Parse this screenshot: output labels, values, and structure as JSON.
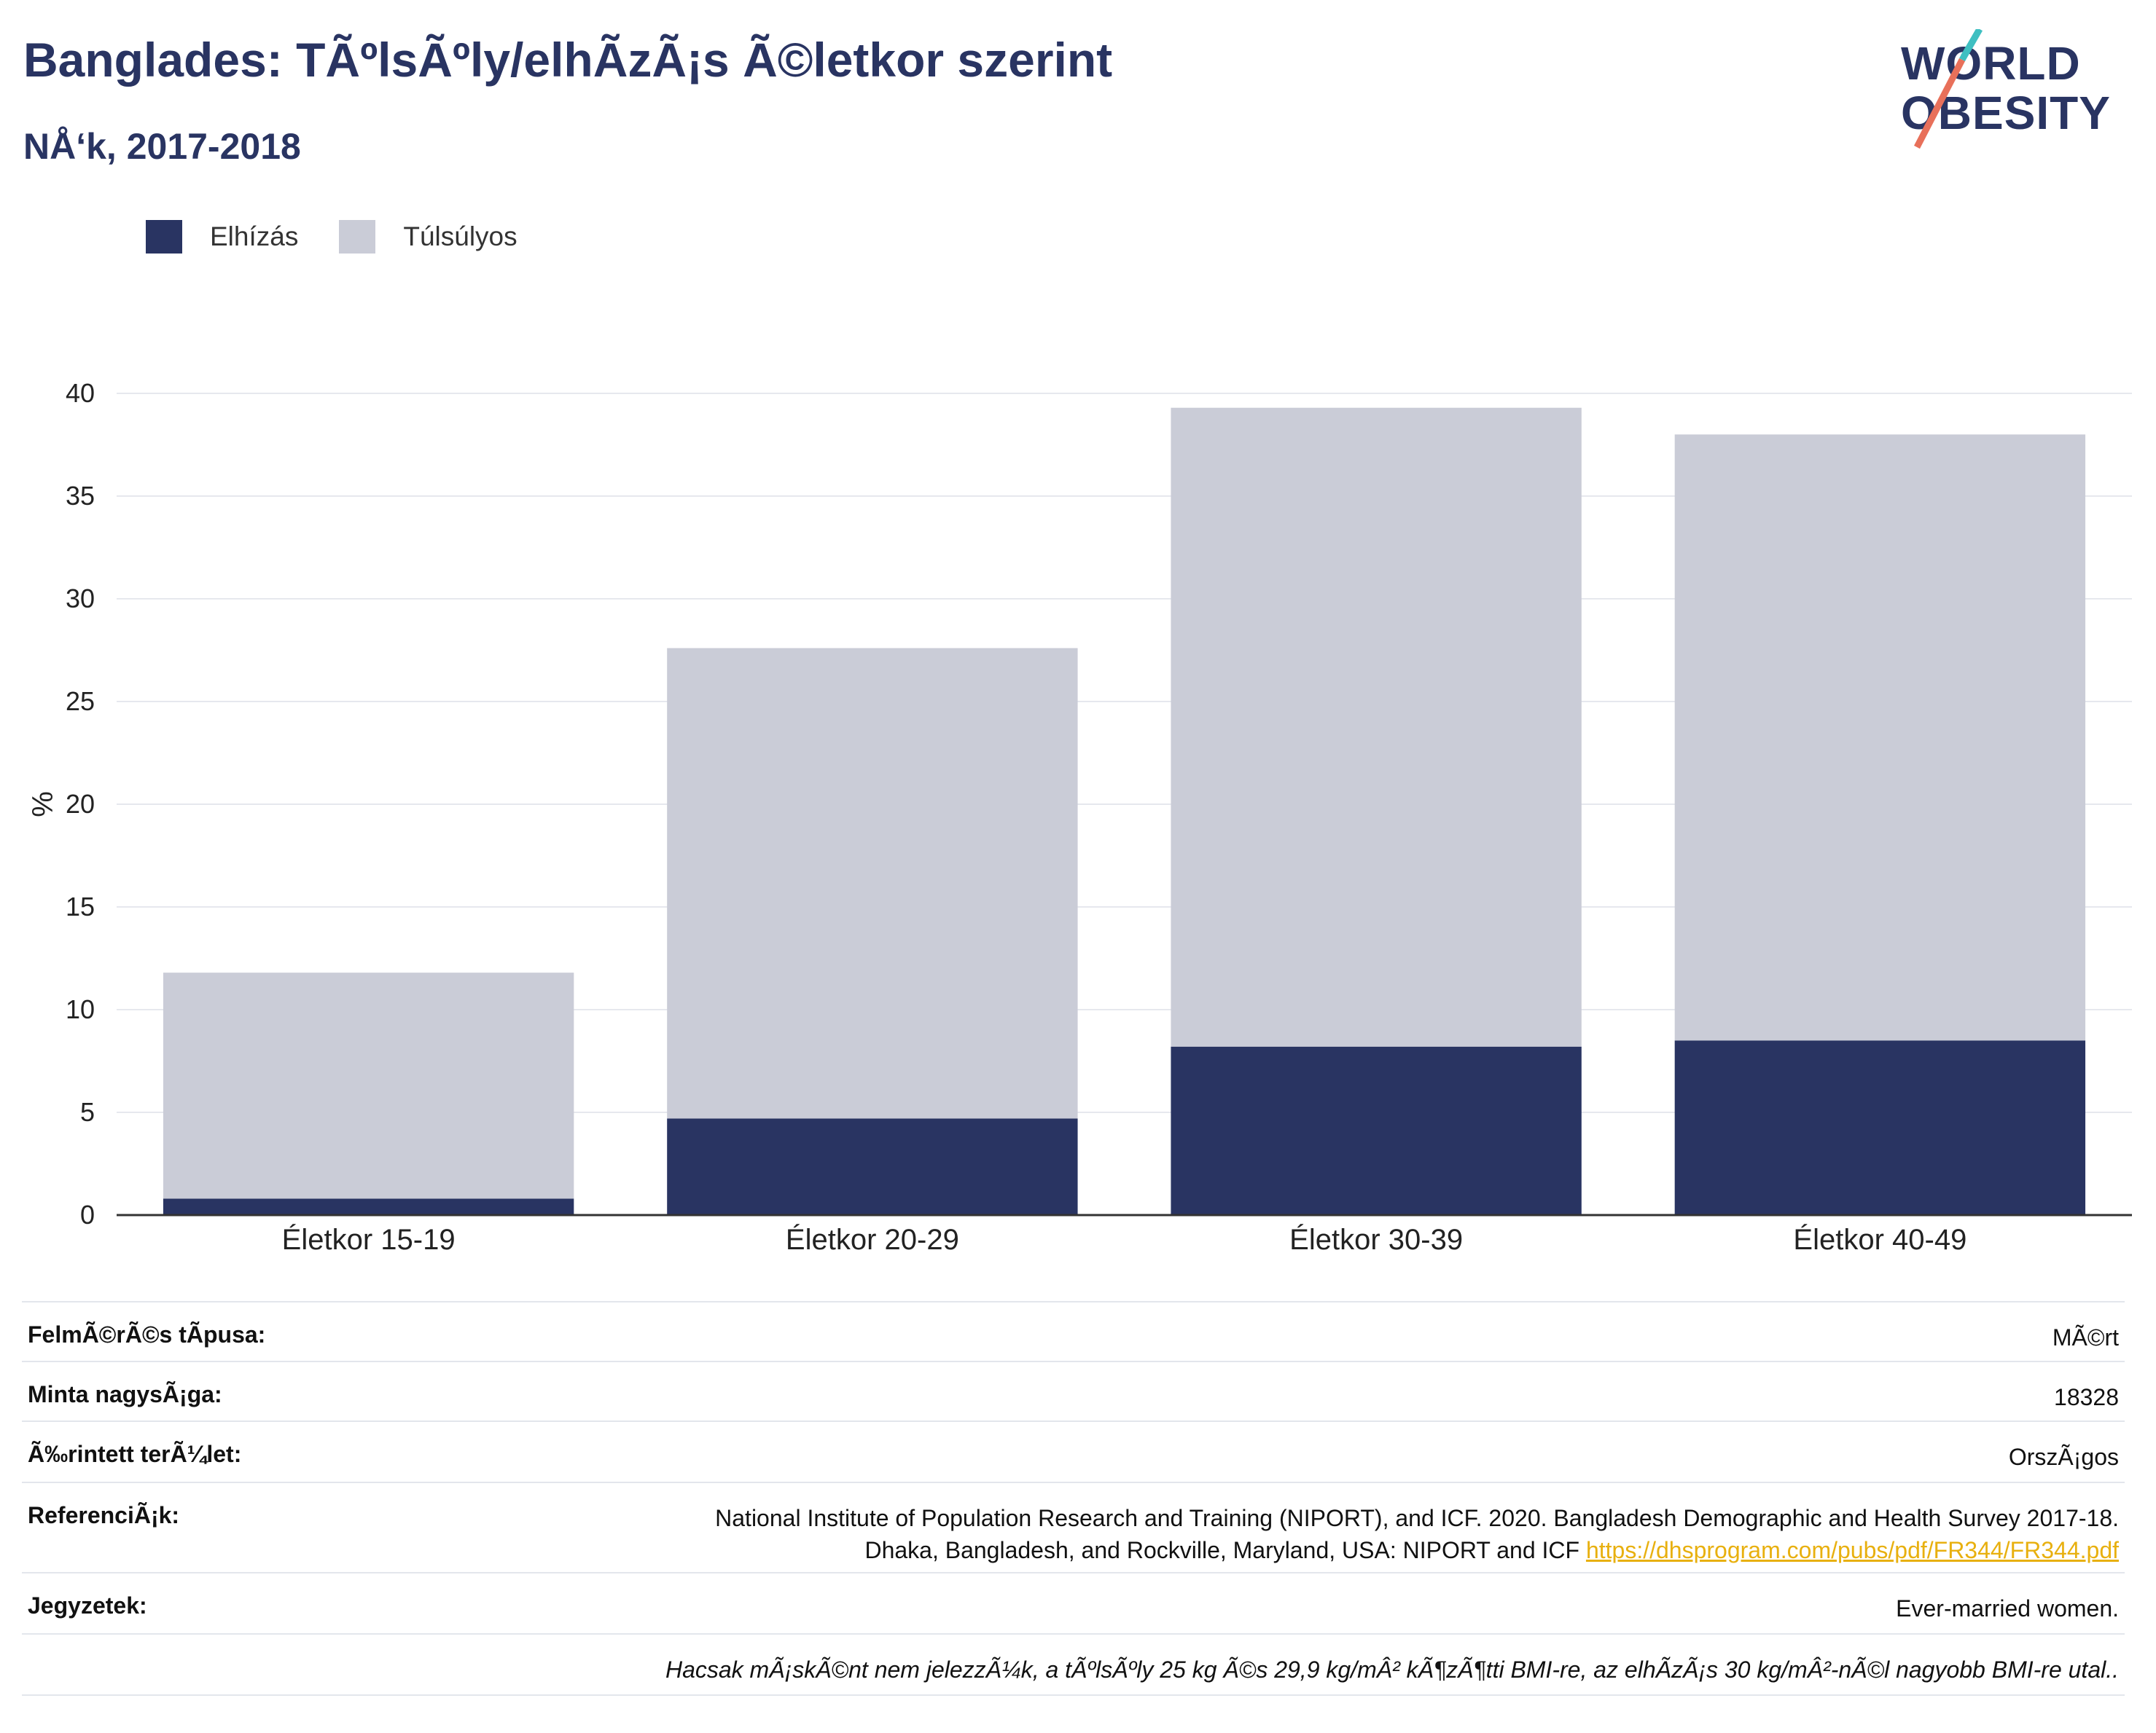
{
  "header": {
    "title": "Banglades: TÃºlsÃºly/elhÃ­zÃ¡s Ã©letkor szerint",
    "subtitle": "NÅ‘k, 2017-2018"
  },
  "logo": {
    "line1": "WORLD",
    "line2": "OBESITY"
  },
  "legend": [
    {
      "label": "Elhízás",
      "color": "#293462"
    },
    {
      "label": "Túlsúlyos",
      "color": "#caccd7"
    }
  ],
  "chart_data": {
    "type": "bar",
    "stacked": true,
    "categories": [
      "Életkor 15-19",
      "Életkor 20-29",
      "Életkor 30-39",
      "Életkor 40-49"
    ],
    "series": [
      {
        "name": "Elhízás",
        "color": "#293462",
        "values": [
          0.8,
          4.7,
          8.2,
          8.5
        ]
      },
      {
        "name": "Túlsúlyos",
        "color": "#caccd7",
        "values": [
          11.0,
          22.9,
          31.1,
          29.5
        ]
      }
    ],
    "ylabel": "%",
    "ylim": [
      0,
      40
    ],
    "yticks": [
      0,
      5,
      10,
      15,
      20,
      25,
      30,
      35,
      40
    ],
    "grid": true,
    "legend_position": "top-left"
  },
  "info": {
    "rows": [
      {
        "label": "FelmÃ©rÃ©s tÃ­pusa:",
        "value": "MÃ©rt"
      },
      {
        "label": "Minta nagysÃ¡ga:",
        "value": "18328"
      },
      {
        "label": "Ã‰rintett terÃ¼let:",
        "value": "OrszÃ¡gos"
      },
      {
        "label": "ReferenciÃ¡k:",
        "value_line1": "National Institute of Population Research and Training (NIPORT), and ICF. 2020. Bangladesh Demographic and Health Survey 2017-18.",
        "value_line2": "Dhaka, Bangladesh, and Rockville, Maryland, USA: NIPORT and ICF",
        "link": "https://dhsprogram.com/pubs/pdf/FR344/FR344.pdf"
      },
      {
        "label": "Jegyzetek:",
        "value": "Ever-married women."
      }
    ],
    "footnote": "Hacsak mÃ¡skÃ©nt nem jelezzÃ¼k, a tÃºlsÃºly 25 kg Ã©s 29,9 kg/mÂ² kÃ¶zÃ¶tti BMI-re, az elhÃ­zÃ¡s 30 kg/mÂ²-nÃ©l nagyobb BMI-re utal.."
  }
}
